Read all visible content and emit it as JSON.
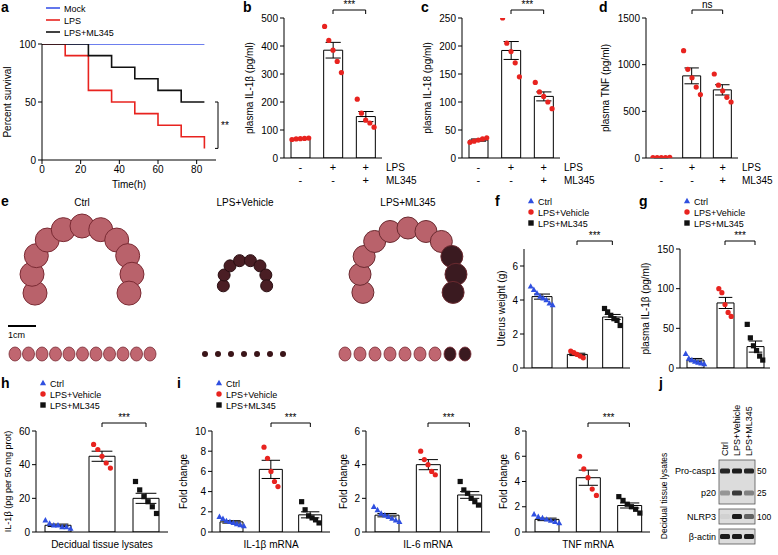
{
  "chart_data": [
    {
      "panel": "a",
      "type": "line",
      "line_style": "step",
      "x": [
        0,
        12,
        24,
        36,
        48,
        60,
        72,
        84
      ],
      "xlabel": "Time(h)",
      "ylabel": "Percent survival",
      "xlim": [
        0,
        90
      ],
      "xticks": [
        0,
        20,
        40,
        60,
        80
      ],
      "ylim": [
        0,
        100
      ],
      "yticks": [
        0,
        50,
        100
      ],
      "legend": "top-left",
      "series": [
        {
          "name": "Mock",
          "color": "#3d55e8",
          "values": [
            100,
            100,
            100,
            100,
            100,
            100,
            100,
            100
          ]
        },
        {
          "name": "LPS",
          "color": "#e8231f",
          "values": [
            100,
            90,
            60,
            50,
            40,
            30,
            20,
            10
          ]
        },
        {
          "name": "LPS+ML345",
          "color": "#111111",
          "values": [
            100,
            100,
            90,
            80,
            70,
            60,
            50,
            50
          ]
        }
      ],
      "significance": [
        {
          "between": [
            "LPS",
            "LPS+ML345"
          ],
          "label": "**"
        }
      ]
    },
    {
      "panel": "b",
      "type": "bar",
      "ylabel": "plasma IL-1β (pg/ml)",
      "ylim": [
        0,
        500
      ],
      "yticks": [
        0,
        100,
        200,
        300,
        400,
        500
      ],
      "treatments": [
        {
          "name": "LPS",
          "values": [
            "-",
            "+",
            "+"
          ]
        },
        {
          "name": "ML345",
          "values": [
            "-",
            "-",
            "+"
          ]
        }
      ],
      "series": [
        {
          "color": "#e8231f",
          "marker": "circle",
          "mean": 68,
          "error": 2,
          "values": [
            66,
            68,
            69,
            70,
            71
          ]
        },
        {
          "color": "#e8231f",
          "marker": "circle",
          "mean": 385,
          "error": 28,
          "values": [
            470,
            420,
            385,
            345,
            305
          ]
        },
        {
          "color": "#e8231f",
          "marker": "circle",
          "mean": 148,
          "error": 18,
          "values": [
            210,
            160,
            135,
            125,
            110
          ]
        }
      ],
      "significance": [
        {
          "from": 1,
          "to": 2,
          "label": "***"
        }
      ]
    },
    {
      "panel": "c",
      "type": "bar",
      "ylabel": "plasma IL-18 (pg/ml)",
      "ylim": [
        0,
        250
      ],
      "yticks": [
        0,
        50,
        100,
        150,
        200,
        250
      ],
      "treatments": [
        {
          "name": "LPS",
          "values": [
            "-",
            "+",
            "+"
          ]
        },
        {
          "name": "ML345",
          "values": [
            "-",
            "-",
            "+"
          ]
        }
      ],
      "series": [
        {
          "color": "#e8231f",
          "marker": "circle",
          "mean": 32,
          "error": 2,
          "values": [
            28,
            30,
            32,
            34,
            36
          ]
        },
        {
          "color": "#e8231f",
          "marker": "circle",
          "mean": 192,
          "error": 16,
          "values": [
            250,
            205,
            190,
            170,
            145
          ]
        },
        {
          "color": "#e8231f",
          "marker": "circle",
          "mean": 110,
          "error": 8,
          "values": [
            135,
            118,
            110,
            100,
            88
          ]
        }
      ],
      "significance": [
        {
          "from": 1,
          "to": 2,
          "label": "***"
        }
      ]
    },
    {
      "panel": "d",
      "type": "bar",
      "ylabel": "plasma TNF (pg/ml)",
      "ylim": [
        0,
        1500
      ],
      "yticks": [
        0,
        500,
        1000,
        1500
      ],
      "treatments": [
        {
          "name": "LPS",
          "values": [
            "-",
            "+",
            "+"
          ]
        },
        {
          "name": "ML345",
          "values": [
            "-",
            "-",
            "+"
          ]
        }
      ],
      "series": [
        {
          "color": "#e8231f",
          "marker": "circle",
          "mean": 5,
          "error": 2,
          "values": [
            4,
            5,
            5,
            5,
            6
          ]
        },
        {
          "color": "#e8231f",
          "marker": "circle",
          "mean": 880,
          "error": 85,
          "values": [
            1150,
            950,
            860,
            760,
            680
          ]
        },
        {
          "color": "#e8231f",
          "marker": "circle",
          "mean": 730,
          "error": 55,
          "values": [
            900,
            780,
            720,
            650,
            600
          ]
        }
      ],
      "significance": [
        {
          "from": 1,
          "to": 2,
          "label": "ns"
        }
      ]
    },
    {
      "panel": "f",
      "type": "bar",
      "ylabel": "Uterus weight (g)",
      "ylim": [
        0,
        7
      ],
      "yticks": [
        0,
        2,
        4,
        6
      ],
      "legend": "top-left",
      "series": [
        {
          "name": "Ctrl",
          "color": "#2f4fe0",
          "marker": "triangle",
          "mean": 4.2,
          "error": 0.15,
          "values": [
            4.8,
            4.6,
            4.4,
            4.2,
            4.1,
            4.0,
            3.8,
            3.7
          ]
        },
        {
          "name": "LPS+Vehicle",
          "color": "#e8231f",
          "marker": "circle",
          "mean": 0.8,
          "error": 0.07,
          "values": [
            1.0,
            0.9,
            0.8,
            0.7,
            0.6
          ]
        },
        {
          "name": "LPS+ML345",
          "color": "#111111",
          "marker": "square",
          "mean": 3.0,
          "error": 0.15,
          "values": [
            3.5,
            3.3,
            3.1,
            2.9,
            2.8,
            2.5
          ]
        }
      ],
      "significance": [
        {
          "from": 1,
          "to": 2,
          "label": "***"
        }
      ]
    },
    {
      "panel": "g",
      "type": "bar",
      "ylabel": "plasma IL-1β (pg/ml)",
      "ylim": [
        0,
        150
      ],
      "yticks": [
        0,
        50,
        100,
        150
      ],
      "legend": "top-left",
      "series": [
        {
          "name": "Ctrl",
          "color": "#2f4fe0",
          "marker": "triangle",
          "mean": 10,
          "error": 2,
          "values": [
            18,
            12,
            10,
            8,
            7,
            6,
            5
          ]
        },
        {
          "name": "LPS+Vehicle",
          "color": "#e8231f",
          "marker": "circle",
          "mean": 82,
          "error": 7,
          "values": [
            100,
            95,
            80,
            70,
            65
          ]
        },
        {
          "name": "LPS+ML345",
          "color": "#111111",
          "marker": "square",
          "mean": 27,
          "error": 7,
          "values": [
            55,
            38,
            28,
            22,
            15,
            10
          ]
        }
      ],
      "significance": [
        {
          "from": 1,
          "to": 2,
          "label": "***"
        }
      ]
    },
    {
      "panel": "h",
      "type": "bar",
      "ylabel": "IL-1β (pg per 50 mg prot)",
      "xlabel": "Decidual tissue lysates",
      "ylim": [
        0,
        60
      ],
      "yticks": [
        0,
        20,
        40,
        60
      ],
      "legend": "top-left",
      "series": [
        {
          "name": "Ctrl",
          "color": "#2f4fe0",
          "marker": "triangle",
          "mean": 4,
          "error": 0.7,
          "values": [
            7,
            5,
            4,
            4,
            3,
            3,
            2
          ]
        },
        {
          "name": "LPS+Vehicle",
          "color": "#e8231f",
          "marker": "circle",
          "mean": 45,
          "error": 3,
          "values": [
            52,
            49,
            45,
            41,
            38
          ]
        },
        {
          "name": "LPS+ML345",
          "color": "#111111",
          "marker": "square",
          "mean": 20,
          "error": 3,
          "values": [
            30,
            25,
            21,
            18,
            15,
            11
          ]
        }
      ],
      "significance": [
        {
          "from": 1,
          "to": 2,
          "label": "***"
        }
      ]
    },
    {
      "panel": "i",
      "type": "bar",
      "ylabel": "Fold change",
      "xlabel": "IL-1β mRNA",
      "ylim": [
        0,
        10
      ],
      "yticks": [
        0,
        2,
        4,
        6,
        8,
        10
      ],
      "legend": "top-left",
      "series": [
        {
          "name": "Ctrl",
          "color": "#2f4fe0",
          "marker": "triangle",
          "mean": 1.0,
          "error": 0.12,
          "values": [
            1.5,
            1.3,
            1.1,
            1.0,
            0.9,
            0.8,
            0.7,
            0.6
          ]
        },
        {
          "name": "LPS+Vehicle",
          "color": "#e8231f",
          "marker": "circle",
          "mean": 6.2,
          "error": 0.9,
          "values": [
            8.4,
            7.3,
            6.0,
            5.0,
            4.5
          ]
        },
        {
          "name": "LPS+ML345",
          "color": "#111111",
          "marker": "square",
          "mean": 1.7,
          "error": 0.3,
          "values": [
            3.0,
            2.2,
            1.6,
            1.4,
            1.2,
            0.9
          ]
        }
      ],
      "significance": [
        {
          "from": 1,
          "to": 2,
          "label": "***"
        }
      ]
    },
    {
      "type": "bar",
      "ylabel": "Fold change",
      "xlabel": "IL-6 mRNA",
      "ylim": [
        0,
        6
      ],
      "yticks": [
        0,
        2,
        4,
        6
      ],
      "series": [
        {
          "color": "#2f4fe0",
          "marker": "triangle",
          "mean": 1.0,
          "error": 0.1,
          "values": [
            1.5,
            1.3,
            1.1,
            1.0,
            0.9,
            0.8,
            0.7,
            0.6
          ]
        },
        {
          "color": "#e8231f",
          "marker": "circle",
          "mean": 4.0,
          "error": 0.3,
          "values": [
            4.8,
            4.3,
            4.0,
            3.6,
            3.4
          ]
        },
        {
          "color": "#111111",
          "marker": "square",
          "mean": 2.2,
          "error": 0.2,
          "values": [
            3.0,
            2.5,
            2.3,
            2.0,
            1.8,
            1.6
          ]
        }
      ],
      "significance": [
        {
          "from": 1,
          "to": 2,
          "label": "***"
        }
      ]
    },
    {
      "type": "bar",
      "ylabel": "Fold change",
      "xlabel": "TNF mRNA",
      "ylim": [
        0,
        8
      ],
      "yticks": [
        0,
        2,
        4,
        6,
        8
      ],
      "series": [
        {
          "color": "#2f4fe0",
          "marker": "triangle",
          "mean": 1.0,
          "error": 0.1,
          "values": [
            1.4,
            1.2,
            1.1,
            1.0,
            0.9,
            0.8,
            0.7
          ]
        },
        {
          "color": "#e8231f",
          "marker": "circle",
          "mean": 4.3,
          "error": 0.6,
          "values": [
            6.0,
            5.0,
            4.3,
            3.4,
            2.9
          ]
        },
        {
          "color": "#111111",
          "marker": "square",
          "mean": 2.1,
          "error": 0.2,
          "values": [
            2.8,
            2.5,
            2.2,
            2.0,
            1.8,
            1.5
          ]
        }
      ],
      "significance": [
        {
          "from": 1,
          "to": 2,
          "label": "***"
        }
      ]
    }
  ],
  "photo": {
    "panel": "e",
    "groups": [
      "Ctrl",
      "LPS+Vehicle",
      "LPS+ML345"
    ],
    "scale_bar": "1cm"
  },
  "blot": {
    "panel": "j",
    "side_label": "Decidual tissue lysates",
    "lanes": [
      "Ctrl",
      "LPS+Vehicle",
      "LPS+ML345"
    ],
    "boxes": [
      {
        "rows": [
          {
            "label": "Pro-casp1",
            "band_strength": [
              0.9,
              0.95,
              0.9
            ]
          },
          {
            "label": "p20",
            "band_strength": [
              0.35,
              0.8,
              0.45
            ]
          }
        ],
        "markers": [
          "50",
          "25"
        ]
      },
      {
        "rows": [
          {
            "label": "NLRP3",
            "band_strength": [
              0.05,
              0.95,
              0.6
            ]
          }
        ],
        "markers": [
          "100"
        ]
      },
      {
        "rows": [
          {
            "label": "β-actin",
            "band_strength": [
              0.95,
              0.95,
              0.95
            ]
          }
        ],
        "markers": []
      }
    ]
  }
}
